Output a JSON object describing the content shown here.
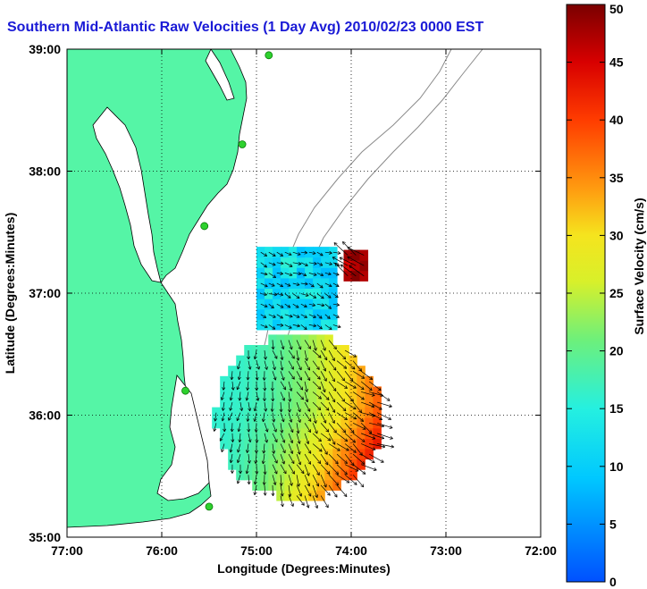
{
  "chart_data": {
    "type": "heatmap",
    "title": "Southern Mid-Atlantic Raw Velocities (1 Day Avg) 2010/02/23 0000 EST",
    "xlabel": "Longitude (Degrees:Minutes)",
    "ylabel": "Latitude (Degrees:Minutes)",
    "x_ticks": [
      "77:00",
      "76:00",
      "75:00",
      "74:00",
      "73:00",
      "72:00"
    ],
    "y_ticks": [
      "39:00",
      "38:00",
      "37:00",
      "36:00",
      "35:00"
    ],
    "xlim": [
      -77,
      -72
    ],
    "ylim": [
      35,
      39
    ],
    "grid": true,
    "colorbar": {
      "label": "Surface Velocity (cm/s)",
      "range": [
        0,
        50
      ],
      "ticks": [
        "0",
        "5",
        "10",
        "15",
        "20",
        "25",
        "30",
        "35",
        "40",
        "45",
        "50"
      ],
      "colormap": "jet"
    },
    "colors": {
      "land": "#55f5a6",
      "title": "#1a1ad6",
      "vector": "#000000",
      "stations": "#2ed12e"
    },
    "stations": [
      {
        "lon": -74.87,
        "lat": 38.95
      },
      {
        "lon": -75.15,
        "lat": 38.22
      },
      {
        "lon": -75.55,
        "lat": 37.55
      },
      {
        "lon": -75.75,
        "lat": 36.2
      },
      {
        "lon": -75.5,
        "lat": 35.25
      }
    ],
    "velocity_regions": [
      {
        "name": "north-patch",
        "lon_range": [
          -75.0,
          -74.22
        ],
        "lat_range": [
          36.7,
          37.3
        ],
        "speed_min": 8,
        "speed_max": 16
      },
      {
        "name": "north-east-cell",
        "lon_range": [
          -74.08,
          -73.83
        ],
        "lat_range": [
          37.1,
          37.3
        ],
        "speed_min": 44,
        "speed_max": 50
      },
      {
        "name": "south-patch",
        "lon_range": [
          -75.47,
          -73.75
        ],
        "lat_range": [
          35.3,
          36.6
        ],
        "speed_min": 10,
        "speed_max": 50
      }
    ]
  }
}
